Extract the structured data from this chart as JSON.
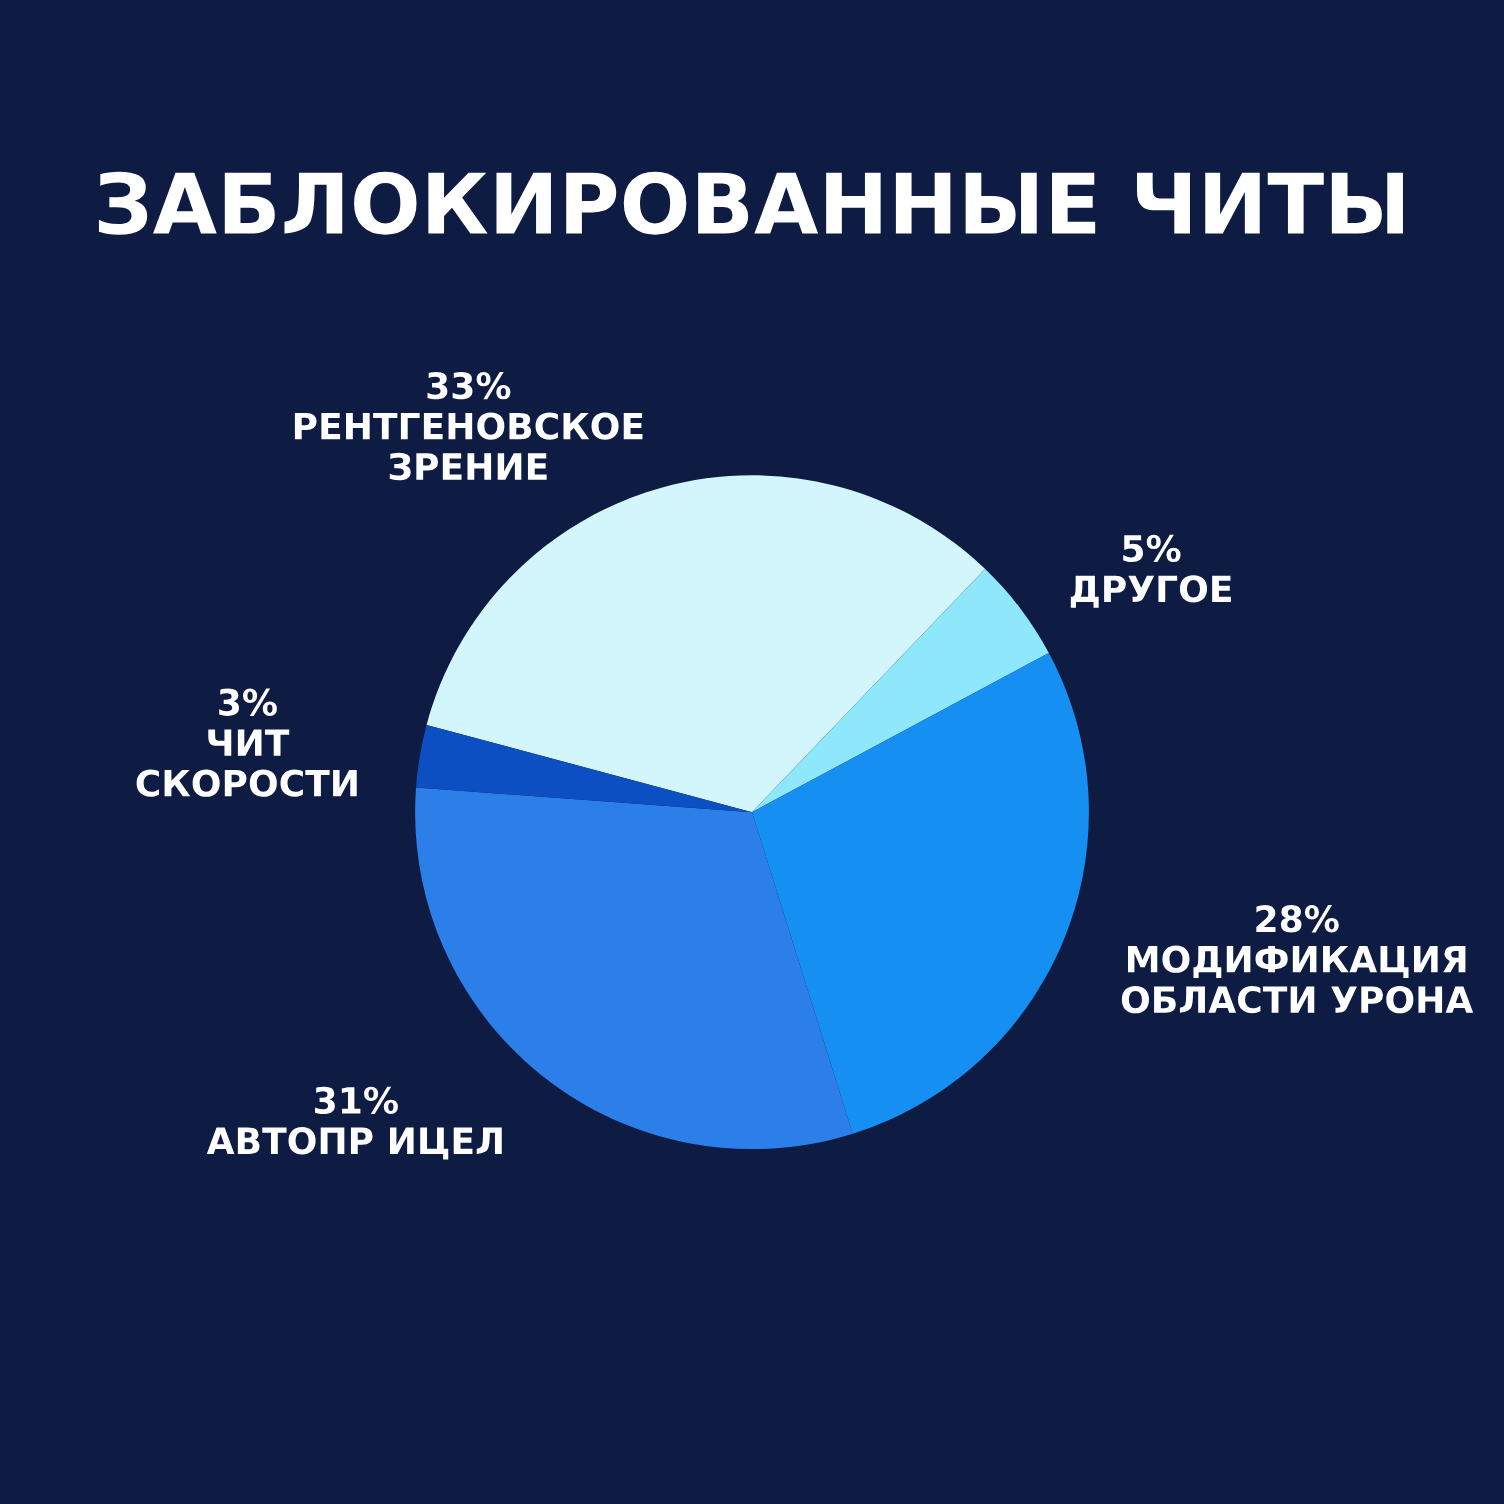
{
  "chart_data": {
    "type": "pie",
    "title": "ЗАБЛОКИРОВАННЫЕ ЧИТЫ",
    "categories": [
      "РЕНТГЕНОВСКОЕ\nЗРЕНИЕ",
      "ДРУГОЕ",
      "МОДИФИКАЦИЯ\nОБЛАСТИ УРОНА",
      "АВТОПР ИЦЕЛ",
      "ЧИТ\nСКОРОСТИ"
    ],
    "values": [
      33,
      5,
      28,
      31,
      3
    ],
    "value_labels": [
      "33%",
      "5%",
      "28%",
      "31%",
      "3%"
    ],
    "colors": [
      "#d2f6fb",
      "#8ee7fa",
      "#1590f2",
      "#2c7fe8",
      "#0b4fc2"
    ]
  }
}
